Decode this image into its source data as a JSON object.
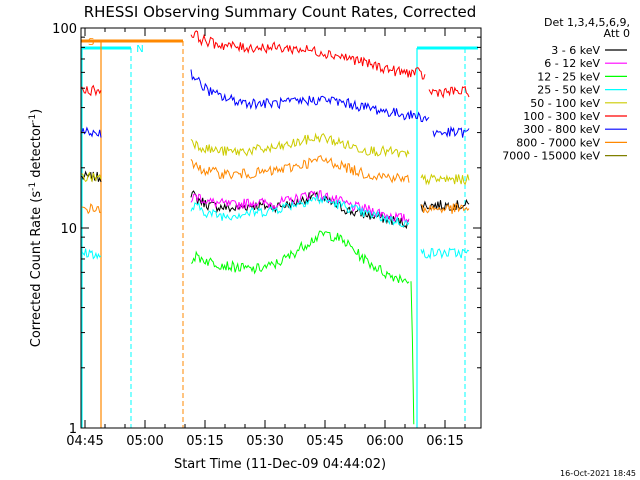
{
  "chart_data": {
    "type": "line",
    "title": "RHESSI Observing Summary Count Rates, Corrected",
    "xlabel": "Start Time (11-Dec-09 04:44:02)",
    "ylabel": "Corrected Count Rate (s⁻¹ detector⁻¹)",
    "ylabel_parts": [
      "Corrected Count Rate (s",
      "-1",
      " detector",
      "-1",
      ")"
    ],
    "yscale": "log",
    "xlim": [
      0,
      100
    ],
    "ylim": [
      1,
      100
    ],
    "x_ticks": [
      {
        "pos": 1,
        "label": "04:45"
      },
      {
        "pos": 16,
        "label": "05:00"
      },
      {
        "pos": 31,
        "label": "05:15"
      },
      {
        "pos": 46,
        "label": "05:30"
      },
      {
        "pos": 61,
        "label": "05:45"
      },
      {
        "pos": 76,
        "label": "06:00"
      },
      {
        "pos": 91,
        "label": "06:15"
      }
    ],
    "y_ticks": [
      {
        "value": 1,
        "label": "1"
      },
      {
        "value": 10,
        "label": "10"
      },
      {
        "value": 100,
        "label": "100"
      }
    ],
    "legend_header": [
      "Det 1,3,4,5,6,9,",
      "Att 0"
    ],
    "legend_placement": "right",
    "footer_date": "16-Oct-2021 18:45",
    "flags": {
      "s_label": "S",
      "n_label": "N",
      "s_color": "#ff8800",
      "n_color": "#00ffff"
    },
    "series": [
      {
        "name": "3 - 6 keV",
        "color": "#000000",
        "segments": [
          {
            "x": [
              0.2,
              5
            ],
            "y": [
              18,
              18
            ]
          },
          {
            "x": [
              27.5,
              29,
              32,
              38,
              43,
              48,
              53,
              58,
              63,
              68,
              73,
              77.5,
              82
            ],
            "y": [
              15,
              14,
              13,
              12.5,
              13,
              12.8,
              13.2,
              14.5,
              13.2,
              12,
              11.5,
              11,
              10.5
            ]
          },
          {
            "x": [
              85,
              97
            ],
            "y": [
              13,
              13
            ]
          }
        ]
      },
      {
        "name": "6 - 12 keV",
        "color": "#ff00ff",
        "segments": [
          {
            "x": [
              27.5,
              29,
              32,
              38,
              43,
              48,
              53,
              58,
              63,
              68,
              73,
              77.5,
              82
            ],
            "y": [
              14,
              14.5,
              13.5,
              13,
              13.5,
              13.2,
              13.8,
              15,
              14,
              12.8,
              12.2,
              11.5,
              11
            ]
          }
        ]
      },
      {
        "name": "12 - 25 keV",
        "color": "#00ff00",
        "segments": [
          {
            "x": [
              27.5,
              29,
              32,
              38,
              43,
              48,
              52,
              55,
              58,
              61,
              64,
              67,
              70,
              73,
              77,
              82
            ],
            "y": [
              7,
              7.2,
              6.8,
              6.4,
              6.2,
              6.5,
              7.2,
              8,
              8.8,
              9.4,
              9,
              8.2,
              7.2,
              6.5,
              5.8,
              5.5
            ]
          },
          {
            "x": [
              82.5,
              83,
              83.2
            ],
            "y": [
              5.5,
              2,
              1
            ]
          }
        ]
      },
      {
        "name": "25 - 50 keV",
        "color": "#00ffff",
        "segments": [
          {
            "x": [
              0.2,
              3,
              5
            ],
            "y": [
              7.5,
              7.5,
              7
            ]
          },
          {
            "x": [
              27.5,
              29,
              32,
              36,
              40,
              44,
              48,
              52,
              56,
              59,
              62,
              65,
              68,
              71,
              74,
              77.5,
              82
            ],
            "y": [
              12.5,
              12.8,
              11.8,
              11.5,
              11.8,
              12,
              12.3,
              13,
              13.6,
              14,
              13.6,
              13,
              12.5,
              11.8,
              11.5,
              11,
              10.5
            ]
          },
          {
            "x": [
              85,
              97
            ],
            "y": [
              7.5,
              7.5
            ]
          }
        ]
      },
      {
        "name": "50 - 100 keV",
        "color": "#cccc00",
        "segments": [
          {
            "x": [
              0.2,
              5
            ],
            "y": [
              18,
              18
            ]
          },
          {
            "x": [
              27.5,
              29,
              33,
              38,
              43,
              48,
              52,
              56,
              60,
              64,
              68,
              72,
              77.5,
              82
            ],
            "y": [
              28,
              26,
              24.5,
              24,
              24.5,
              25,
              26,
              27.5,
              28.5,
              27,
              25.5,
              24.5,
              24,
              23
            ]
          },
          {
            "x": [
              85,
              97
            ],
            "y": [
              17.5,
              17.5
            ]
          }
        ]
      },
      {
        "name": "100 - 300 keV",
        "color": "#ff0000",
        "segments": [
          {
            "x": [
              0.2,
              5
            ],
            "y": [
              49,
              49
            ]
          },
          {
            "x": [
              27.5,
              28,
              30,
              33,
              36,
              40,
              44,
              48,
              52,
              56,
              60,
              64,
              68,
              72,
              76,
              80,
              84,
              86
            ],
            "y": [
              92,
              95,
              88,
              84,
              82,
              80,
              80,
              80,
              79,
              78,
              76,
              73,
              70,
              66,
              63,
              60,
              60,
              57
            ]
          },
          {
            "x": [
              87,
              97
            ],
            "y": [
              48,
              48
            ]
          }
        ]
      },
      {
        "name": "300 - 800 keV",
        "color": "#0000ff",
        "segments": [
          {
            "x": [
              0.2,
              5
            ],
            "y": [
              30,
              30
            ]
          },
          {
            "x": [
              27.5,
              28,
              30,
              33,
              37,
              41,
              45,
              49,
              53,
              57,
              61,
              65,
              69,
              73,
              77,
              81,
              85,
              87
            ],
            "y": [
              60,
              58,
              52,
              47,
              44,
              42.5,
              42,
              42,
              42.5,
              43.5,
              44,
              42.5,
              41,
              39.5,
              38,
              37,
              36,
              35
            ]
          },
          {
            "x": [
              88,
              97
            ],
            "y": [
              30,
              30
            ]
          }
        ]
      },
      {
        "name": "800 - 7000 keV",
        "color": "#ff8800",
        "segments": [
          {
            "x": [
              0.2,
              5
            ],
            "y": [
              12.5,
              12.5
            ]
          },
          {
            "x": [
              27.5,
              29,
              33,
              38,
              43,
              48,
              52,
              56,
              60,
              64,
              68,
              72,
              77.5,
              82
            ],
            "y": [
              21,
              20,
              19,
              18.5,
              18.8,
              19.2,
              20,
              21,
              22,
              21,
              19.5,
              18.5,
              18,
              17.5
            ]
          },
          {
            "x": [
              85,
              97
            ],
            "y": [
              12.5,
              12.5
            ]
          }
        ]
      },
      {
        "name": "7000 - 15000 keV",
        "color": "#808000",
        "segments": []
      }
    ]
  }
}
